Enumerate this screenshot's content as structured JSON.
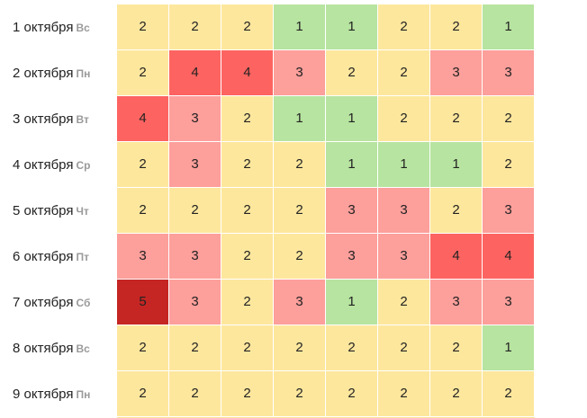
{
  "colors": {
    "1": "#b7e4a0",
    "2": "#fde79d",
    "3": "#fd9f9b",
    "4": "#fd6461",
    "5": "#c52623"
  },
  "rows": [
    {
      "date": "1 октября",
      "dow": "Вс",
      "values": [
        2,
        2,
        2,
        1,
        1,
        2,
        2,
        1
      ]
    },
    {
      "date": "2 октября",
      "dow": "Пн",
      "values": [
        2,
        4,
        4,
        3,
        2,
        2,
        3,
        3
      ]
    },
    {
      "date": "3 октября",
      "dow": "Вт",
      "values": [
        4,
        3,
        2,
        1,
        1,
        2,
        2,
        2
      ]
    },
    {
      "date": "4 октября",
      "dow": "Ср",
      "values": [
        2,
        3,
        2,
        2,
        1,
        1,
        1,
        2
      ]
    },
    {
      "date": "5 октября",
      "dow": "Чт",
      "values": [
        2,
        2,
        2,
        2,
        3,
        3,
        2,
        3
      ]
    },
    {
      "date": "6 октября",
      "dow": "Пт",
      "values": [
        3,
        3,
        2,
        2,
        3,
        3,
        4,
        4
      ]
    },
    {
      "date": "7 октября",
      "dow": "Сб",
      "values": [
        5,
        3,
        2,
        3,
        1,
        2,
        3,
        3
      ]
    },
    {
      "date": "8 октября",
      "dow": "Вс",
      "values": [
        2,
        2,
        2,
        2,
        2,
        2,
        2,
        1
      ]
    },
    {
      "date": "9 октября",
      "dow": "Пн",
      "values": [
        2,
        2,
        2,
        2,
        2,
        2,
        2,
        2
      ]
    }
  ]
}
